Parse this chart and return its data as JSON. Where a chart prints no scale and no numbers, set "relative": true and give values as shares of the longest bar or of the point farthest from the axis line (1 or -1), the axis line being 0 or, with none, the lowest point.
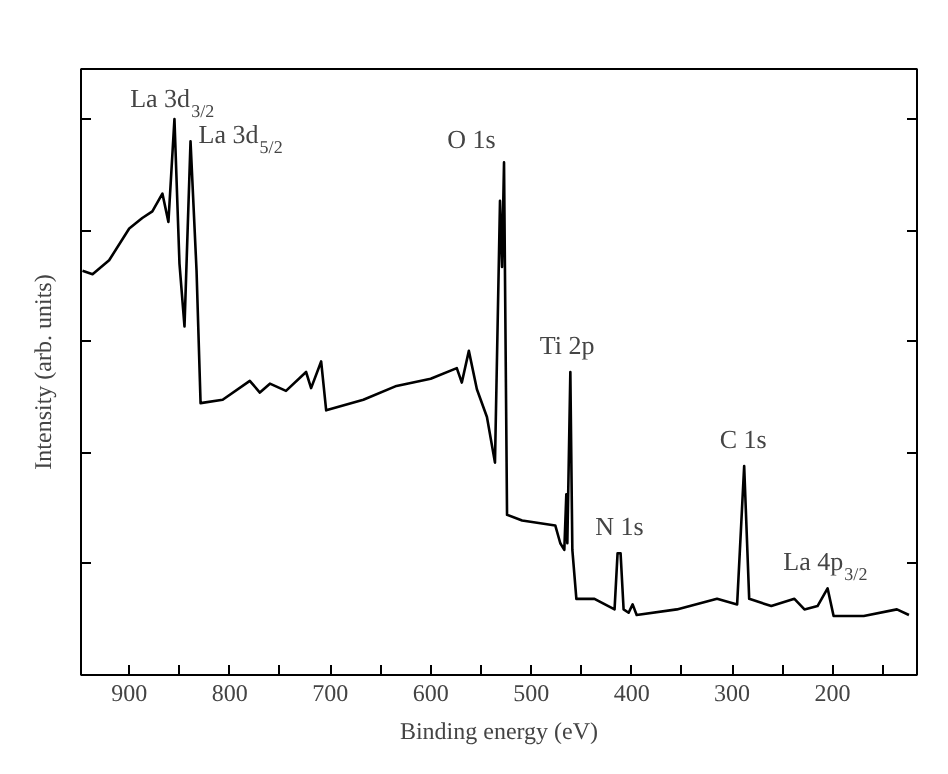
{
  "chart_data": {
    "type": "line",
    "relative": true,
    "xlabel": "Binding energy (eV)",
    "ylabel": "Intensity (arb. units)",
    "xlim": [
      948,
      116
    ],
    "xticks": [
      900,
      {
        "value": 850,
        "label": null
      },
      800,
      {
        "value": 750,
        "label": null
      },
      700,
      {
        "value": 650,
        "label": null
      },
      600,
      {
        "value": 550,
        "label": null
      },
      500,
      {
        "value": 450,
        "label": null
      },
      400,
      {
        "value": 350,
        "label": null
      },
      300,
      {
        "value": 250,
        "label": null
      },
      200,
      {
        "value": 150,
        "label": null
      }
    ],
    "grid": false,
    "marker": "none",
    "line_style": "solid",
    "series": [
      {
        "color": "#000000",
        "x": [
          946.5,
          936.5,
          920,
          900,
          887,
          877,
          867,
          861,
          855,
          850,
          845,
          839,
          833,
          829,
          807,
          780,
          770,
          760,
          744,
          724,
          719,
          709,
          704,
          667,
          634,
          600,
          574,
          569,
          562,
          554,
          544,
          536,
          531,
          529,
          527,
          524,
          509,
          476,
          471,
          467,
          465,
          464,
          461,
          459,
          455,
          437,
          417,
          414,
          411,
          408,
          403,
          399,
          395,
          355,
          315,
          295,
          288,
          283,
          261,
          238,
          228,
          215,
          205,
          199,
          169,
          136,
          124
        ],
        "values": [
          0.727,
          0.721,
          0.746,
          0.803,
          0.822,
          0.834,
          0.866,
          0.815,
          1.0,
          0.74,
          0.627,
          0.96,
          0.727,
          0.489,
          0.495,
          0.529,
          0.508,
          0.524,
          0.511,
          0.545,
          0.516,
          0.564,
          0.476,
          0.495,
          0.52,
          0.533,
          0.552,
          0.526,
          0.583,
          0.514,
          0.464,
          0.382,
          0.853,
          0.734,
          0.922,
          0.288,
          0.278,
          0.269,
          0.237,
          0.225,
          0.325,
          0.237,
          0.545,
          0.225,
          0.137,
          0.137,
          0.118,
          0.219,
          0.219,
          0.118,
          0.112,
          0.127,
          0.108,
          0.118,
          0.137,
          0.127,
          0.376,
          0.137,
          0.124,
          0.137,
          0.118,
          0.124,
          0.156,
          0.106,
          0.106,
          0.118,
          0.108
        ]
      }
    ],
    "annotations": [
      {
        "text": "La 3d$_{3/2}$",
        "x": 855,
        "y": 1.0
      },
      {
        "text": "La 3d$_{5/2}$",
        "x": 839,
        "y": 0.96
      },
      {
        "text": "O 1s",
        "x": 527,
        "y": 0.922
      },
      {
        "text": "Ti 2p",
        "x": 461,
        "y": 0.545
      },
      {
        "text": "N 1s",
        "x": 412,
        "y": 0.219
      },
      {
        "text": "C 1s",
        "x": 288,
        "y": 0.376
      },
      {
        "text": "La 4p$_{3/2}$",
        "x": 205,
        "y": 0.156
      }
    ]
  }
}
